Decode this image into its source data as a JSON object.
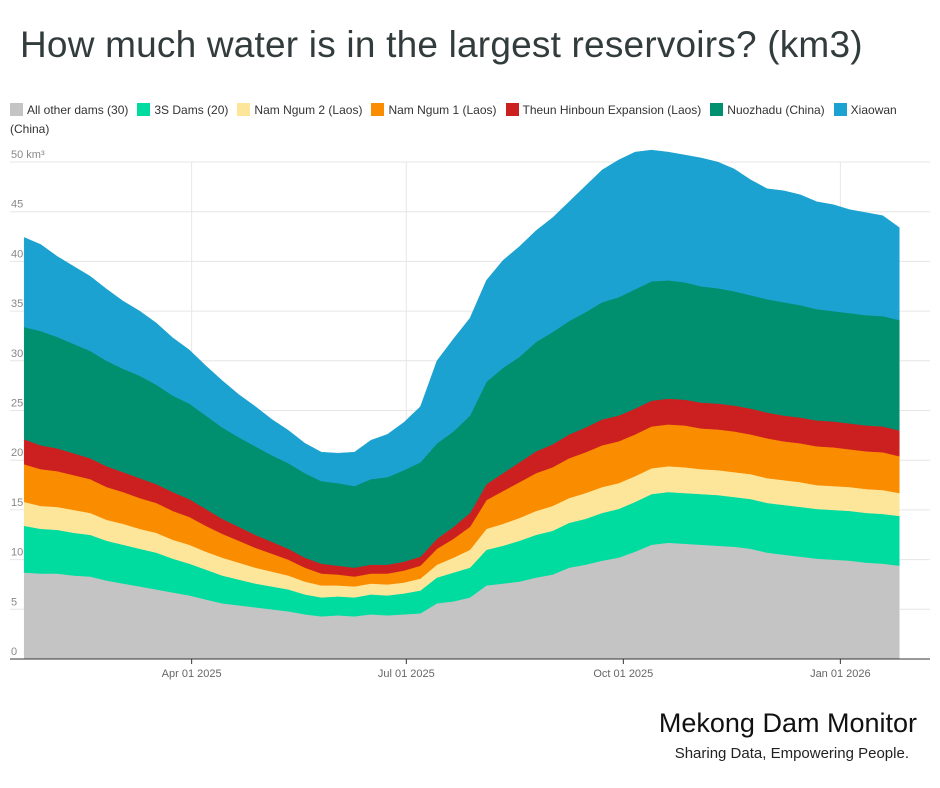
{
  "title": "How much water is in the largest reservoirs? (km3)",
  "branding": {
    "name": "Mekong Dam Monitor",
    "tagline": "Sharing Data, Empowering People."
  },
  "chart_data": {
    "type": "area",
    "stacked": true,
    "title": "How much water is in the largest reservoirs? (km3)",
    "ylabel": "",
    "xlabel": "",
    "ylim": [
      0,
      50
    ],
    "y_unit_label": "50 km³",
    "y_ticks": [
      0,
      5,
      10,
      15,
      20,
      25,
      30,
      35,
      40,
      45,
      50
    ],
    "y_tick_labels": [
      "0",
      "5",
      "10",
      "15",
      "20",
      "25",
      "30",
      "35",
      "40",
      "45",
      "50 km³"
    ],
    "x_ticks": [
      "2025-04-01",
      "2025-07-01",
      "2025-10-01",
      "2026-01-01"
    ],
    "x_tick_labels": [
      "Apr 01 2025",
      "Jul 01 2025",
      "Oct 01 2025",
      "Jan 01 2026"
    ],
    "x_range": [
      "2025-01-14",
      "2026-02-08"
    ],
    "grid": true,
    "legend_position": "top",
    "x": [
      "2025-01-20",
      "2025-01-27",
      "2025-02-03",
      "2025-02-10",
      "2025-02-17",
      "2025-02-24",
      "2025-03-03",
      "2025-03-10",
      "2025-03-17",
      "2025-03-24",
      "2025-03-31",
      "2025-04-07",
      "2025-04-14",
      "2025-04-21",
      "2025-04-28",
      "2025-05-05",
      "2025-05-12",
      "2025-05-19",
      "2025-05-26",
      "2025-06-02",
      "2025-06-09",
      "2025-06-16",
      "2025-06-23",
      "2025-06-30",
      "2025-07-07",
      "2025-07-14",
      "2025-07-21",
      "2025-07-28",
      "2025-08-04",
      "2025-08-11",
      "2025-08-18",
      "2025-08-25",
      "2025-09-01",
      "2025-09-08",
      "2025-09-15",
      "2025-09-22",
      "2025-09-29",
      "2025-10-06",
      "2025-10-13",
      "2025-10-20",
      "2025-10-27",
      "2025-11-03",
      "2025-11-10",
      "2025-11-17",
      "2025-11-24",
      "2025-12-01",
      "2025-12-08",
      "2025-12-15",
      "2025-12-22",
      "2025-12-29",
      "2026-01-05",
      "2026-01-12",
      "2026-01-19",
      "2026-01-26"
    ],
    "series": [
      {
        "name": "All other dams (30)",
        "color": "#c4c4c4",
        "values": [
          8.7,
          8.6,
          8.6,
          8.4,
          8.3,
          7.9,
          7.6,
          7.3,
          7,
          6.7,
          6.4,
          6,
          5.6,
          5.4,
          5.2,
          5,
          4.8,
          4.5,
          4.3,
          4.4,
          4.3,
          4.5,
          4.4,
          4.5,
          4.6,
          5.6,
          5.8,
          6.2,
          7.4,
          7.6,
          7.8,
          8.2,
          8.5,
          9.2,
          9.5,
          9.9,
          10.2,
          10.8,
          11.5,
          11.7,
          11.6,
          11.5,
          11.4,
          11.3,
          11.1,
          10.7,
          10.5,
          10.3,
          10.1,
          10,
          9.9,
          9.7,
          9.6,
          9.4
        ]
      },
      {
        "name": "3S Dams (20)",
        "color": "#00dca0",
        "values": [
          4.7,
          4.5,
          4.4,
          4.3,
          4.2,
          4,
          3.9,
          3.8,
          3.7,
          3.4,
          3.2,
          3,
          2.8,
          2.6,
          2.4,
          2.3,
          2.2,
          2,
          1.9,
          1.9,
          1.9,
          2,
          2,
          2.1,
          2.3,
          2.6,
          2.9,
          3,
          3.6,
          3.8,
          4.1,
          4.3,
          4.4,
          4.5,
          4.6,
          4.8,
          4.9,
          5,
          5.1,
          5.1,
          5.1,
          5.1,
          5.1,
          5,
          5,
          5,
          5,
          5,
          5,
          5,
          5,
          5,
          5,
          5
        ]
      },
      {
        "name": "Nam Ngum 2 (Laos)",
        "color": "#fde59a",
        "values": [
          2.4,
          2.3,
          2.3,
          2.3,
          2.2,
          2.1,
          2.1,
          2,
          2,
          1.9,
          1.9,
          1.8,
          1.8,
          1.7,
          1.6,
          1.5,
          1.4,
          1.3,
          1.2,
          1.1,
          1.1,
          1.1,
          1.1,
          1.1,
          1.2,
          1.3,
          1.5,
          1.8,
          2.1,
          2.2,
          2.3,
          2.4,
          2.5,
          2.5,
          2.6,
          2.6,
          2.6,
          2.6,
          2.6,
          2.6,
          2.6,
          2.5,
          2.5,
          2.5,
          2.5,
          2.5,
          2.5,
          2.5,
          2.4,
          2.4,
          2.4,
          2.4,
          2.4,
          2.3
        ]
      },
      {
        "name": "Nam Ngum 1 (Laos)",
        "color": "#fa8c00",
        "values": [
          3.8,
          3.7,
          3.6,
          3.5,
          3.4,
          3.3,
          3.2,
          3.1,
          3,
          2.9,
          2.8,
          2.6,
          2.4,
          2.2,
          2,
          1.8,
          1.6,
          1.4,
          1.2,
          1.1,
          1,
          1,
          1.1,
          1.2,
          1.3,
          1.6,
          1.9,
          2.3,
          2.9,
          3.3,
          3.6,
          3.8,
          3.9,
          4,
          4.1,
          4.2,
          4.2,
          4.2,
          4.2,
          4.2,
          4.2,
          4.1,
          4.1,
          4.1,
          4,
          4,
          3.9,
          3.9,
          3.9,
          3.9,
          3.8,
          3.8,
          3.8,
          3.7
        ]
      },
      {
        "name": "Theun Hinboun Expansion (Laos)",
        "color": "#cc2020",
        "values": [
          2.5,
          2.4,
          2.3,
          2.2,
          2.1,
          2.1,
          2,
          2,
          1.9,
          1.9,
          1.8,
          1.7,
          1.5,
          1.4,
          1.3,
          1.2,
          1.1,
          1,
          1,
          0.9,
          0.9,
          0.9,
          0.9,
          0.9,
          0.9,
          1,
          1.2,
          1.4,
          1.6,
          1.8,
          2,
          2.2,
          2.3,
          2.4,
          2.5,
          2.6,
          2.6,
          2.6,
          2.6,
          2.6,
          2.6,
          2.6,
          2.6,
          2.6,
          2.6,
          2.6,
          2.6,
          2.6,
          2.6,
          2.6,
          2.6,
          2.6,
          2.6,
          2.6
        ]
      },
      {
        "name": "Nuozhadu (China)",
        "color": "#009070",
        "values": [
          11.3,
          11.5,
          11.2,
          11,
          10.8,
          10.6,
          10.4,
          10.3,
          10,
          9.7,
          9.6,
          9.4,
          9.2,
          9,
          8.9,
          8.7,
          8.6,
          8.5,
          8.3,
          8.3,
          8.2,
          8.6,
          8.8,
          9.2,
          9.5,
          9.6,
          9.6,
          9.8,
          10.3,
          10.6,
          10.6,
          11,
          11.3,
          11.4,
          11.6,
          11.8,
          11.9,
          12,
          12,
          11.9,
          11.8,
          11.7,
          11.6,
          11.5,
          11.4,
          11.4,
          11.4,
          11.3,
          11.2,
          11.1,
          11.1,
          11.1,
          11.1,
          11.1
        ]
      },
      {
        "name": "Xiaowan (China)",
        "color": "#1ba2d0",
        "values": [
          9,
          8.7,
          8.1,
          7.8,
          7.5,
          7.2,
          6.8,
          6.5,
          6.2,
          5.8,
          5.4,
          5,
          4.7,
          4.3,
          4,
          3.6,
          3.3,
          3,
          2.9,
          3,
          3.4,
          3.9,
          4.3,
          4.8,
          5.6,
          8.3,
          9.3,
          9.8,
          10.2,
          10.8,
          11.1,
          11.2,
          11.5,
          12,
          12.7,
          13.3,
          13.8,
          13.8,
          13.2,
          12.9,
          12.8,
          12.9,
          12.7,
          12.3,
          11.6,
          11.1,
          11.2,
          11.1,
          10.8,
          10.7,
          10.4,
          10.3,
          10.1,
          9.3
        ]
      }
    ]
  }
}
